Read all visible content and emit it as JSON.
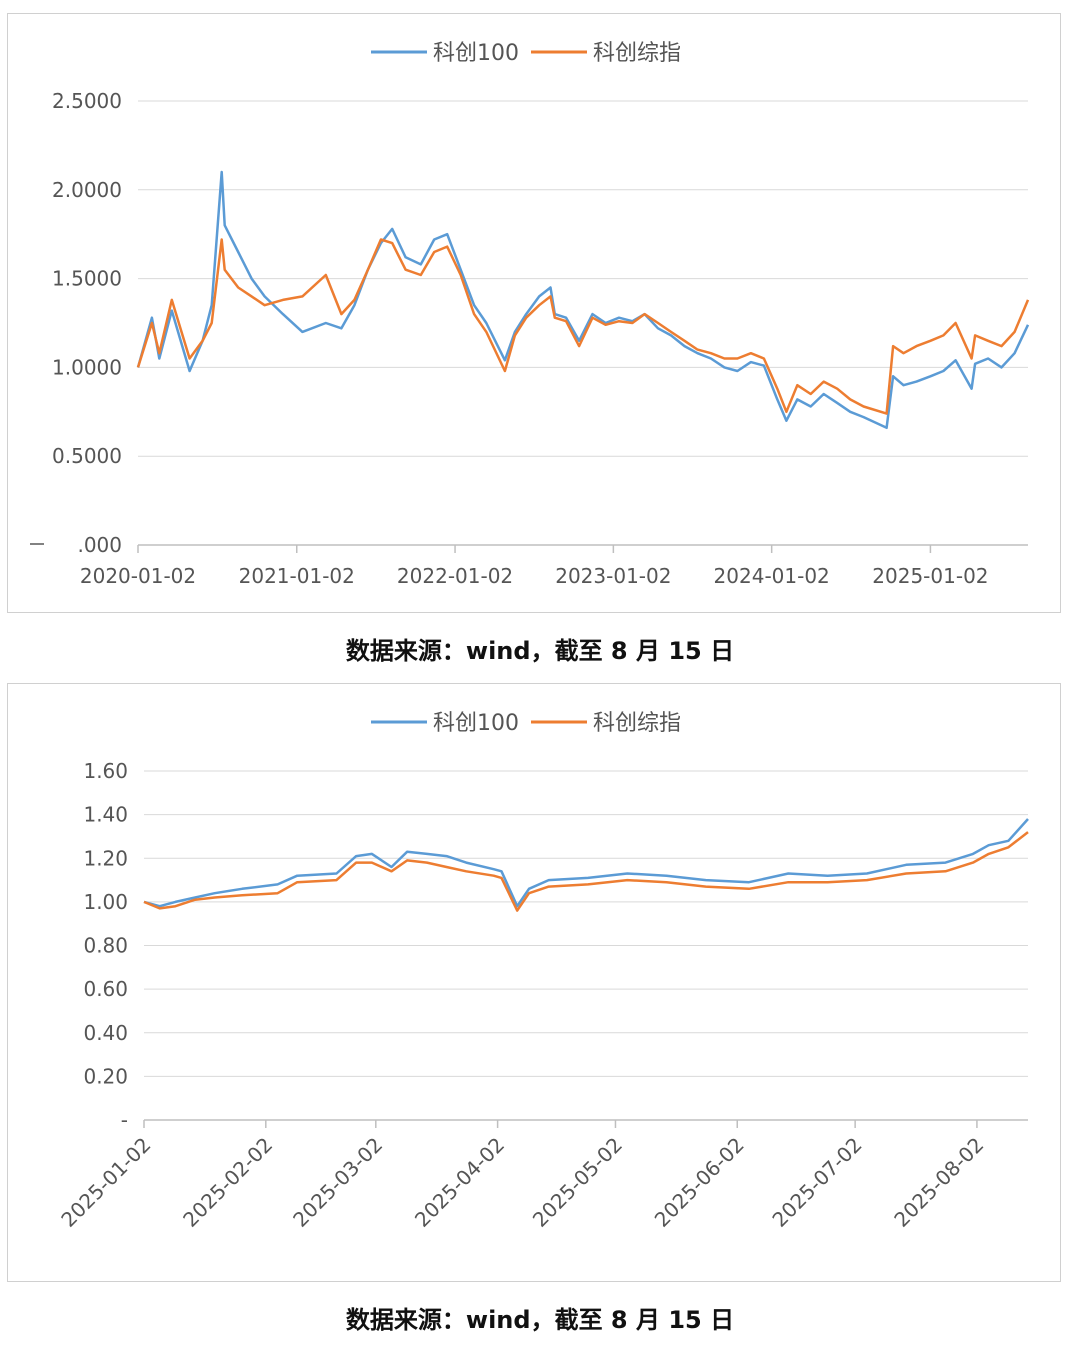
{
  "colors": {
    "series1": "#5B9BD5",
    "series2": "#ED7D31",
    "grid": "#d9d9d9",
    "axis": "#bfbfbf",
    "text": "#595959"
  },
  "captions": [
    "数据来源：wind，截至 8 月 15 日",
    "数据来源：wind，截至 8 月 15 日"
  ],
  "chart_data": [
    {
      "type": "line",
      "legend": [
        "科创100",
        "科创综指"
      ],
      "legend_position": "top",
      "grid": true,
      "ylim": [
        0,
        2.5
      ],
      "yticks": [
        0,
        0.5,
        1.0,
        1.5,
        2.0,
        2.5
      ],
      "ytick_labels": [
        ".000",
        "0.5000",
        "1.0000",
        "1.5000",
        "2.0000",
        "2.5000"
      ],
      "xlim": [
        "2020-01-02",
        "2025-08-15"
      ],
      "xticks": [
        "2020-01-02",
        "2021-01-02",
        "2022-01-02",
        "2023-01-02",
        "2024-01-02",
        "2025-01-02"
      ],
      "series": [
        {
          "name": "科创100",
          "x": [
            "2020-01-02",
            "2020-02-03",
            "2020-02-20",
            "2020-03-20",
            "2020-04-30",
            "2020-05-30",
            "2020-06-20",
            "2020-07-13",
            "2020-07-20",
            "2020-08-20",
            "2020-09-20",
            "2020-10-20",
            "2020-12-01",
            "2021-01-15",
            "2021-03-10",
            "2021-04-15",
            "2021-05-15",
            "2021-06-15",
            "2021-07-15",
            "2021-08-10",
            "2021-09-10",
            "2021-10-15",
            "2021-11-15",
            "2021-12-15",
            "2022-01-15",
            "2022-02-15",
            "2022-03-15",
            "2022-04-27",
            "2022-05-20",
            "2022-06-15",
            "2022-07-15",
            "2022-08-10",
            "2022-08-20",
            "2022-09-15",
            "2022-10-15",
            "2022-11-15",
            "2022-12-15",
            "2023-01-15",
            "2023-02-15",
            "2023-03-15",
            "2023-04-15",
            "2023-05-15",
            "2023-06-15",
            "2023-07-15",
            "2023-08-15",
            "2023-09-15",
            "2023-10-15",
            "2023-11-15",
            "2023-12-15",
            "2024-01-15",
            "2024-02-05",
            "2024-03-01",
            "2024-04-01",
            "2024-05-01",
            "2024-06-01",
            "2024-07-01",
            "2024-08-01",
            "2024-09-23",
            "2024-10-08",
            "2024-11-01",
            "2024-12-01",
            "2025-01-02",
            "2025-02-01",
            "2025-03-01",
            "2025-04-07",
            "2025-04-15",
            "2025-05-15",
            "2025-06-15",
            "2025-07-15",
            "2025-08-15"
          ],
          "y": [
            1.0,
            1.28,
            1.05,
            1.32,
            0.98,
            1.15,
            1.35,
            2.1,
            1.8,
            1.65,
            1.5,
            1.4,
            1.3,
            1.2,
            1.25,
            1.22,
            1.35,
            1.55,
            1.7,
            1.78,
            1.62,
            1.58,
            1.72,
            1.75,
            1.55,
            1.35,
            1.25,
            1.04,
            1.2,
            1.3,
            1.4,
            1.45,
            1.3,
            1.28,
            1.15,
            1.3,
            1.25,
            1.28,
            1.26,
            1.3,
            1.22,
            1.18,
            1.12,
            1.08,
            1.05,
            1.0,
            0.98,
            1.03,
            1.01,
            0.82,
            0.7,
            0.82,
            0.78,
            0.85,
            0.8,
            0.75,
            0.72,
            0.66,
            0.95,
            0.9,
            0.92,
            0.95,
            0.98,
            1.04,
            0.88,
            1.02,
            1.05,
            1.0,
            1.08,
            1.24
          ]
        },
        {
          "name": "科创综指",
          "x": [
            "2020-01-02",
            "2020-02-03",
            "2020-02-20",
            "2020-03-20",
            "2020-04-30",
            "2020-05-30",
            "2020-06-20",
            "2020-07-13",
            "2020-07-20",
            "2020-08-20",
            "2020-09-20",
            "2020-10-20",
            "2020-12-01",
            "2021-01-15",
            "2021-03-10",
            "2021-04-15",
            "2021-05-15",
            "2021-06-15",
            "2021-07-15",
            "2021-08-10",
            "2021-09-10",
            "2021-10-15",
            "2021-11-15",
            "2021-12-15",
            "2022-01-15",
            "2022-02-15",
            "2022-03-15",
            "2022-04-27",
            "2022-05-20",
            "2022-06-15",
            "2022-07-15",
            "2022-08-10",
            "2022-08-20",
            "2022-09-15",
            "2022-10-15",
            "2022-11-15",
            "2022-12-15",
            "2023-01-15",
            "2023-02-15",
            "2023-03-15",
            "2023-04-15",
            "2023-05-15",
            "2023-06-15",
            "2023-07-15",
            "2023-08-15",
            "2023-09-15",
            "2023-10-15",
            "2023-11-15",
            "2023-12-15",
            "2024-01-15",
            "2024-02-05",
            "2024-03-01",
            "2024-04-01",
            "2024-05-01",
            "2024-06-01",
            "2024-07-01",
            "2024-08-01",
            "2024-09-23",
            "2024-10-08",
            "2024-11-01",
            "2024-12-01",
            "2025-01-02",
            "2025-02-01",
            "2025-03-01",
            "2025-04-07",
            "2025-04-15",
            "2025-05-15",
            "2025-06-15",
            "2025-07-15",
            "2025-08-15"
          ],
          "y": [
            1.0,
            1.25,
            1.08,
            1.38,
            1.05,
            1.15,
            1.25,
            1.72,
            1.55,
            1.45,
            1.4,
            1.35,
            1.38,
            1.4,
            1.52,
            1.3,
            1.38,
            1.55,
            1.72,
            1.7,
            1.55,
            1.52,
            1.65,
            1.68,
            1.52,
            1.3,
            1.2,
            0.98,
            1.18,
            1.28,
            1.35,
            1.4,
            1.28,
            1.26,
            1.12,
            1.28,
            1.24,
            1.26,
            1.25,
            1.3,
            1.25,
            1.2,
            1.15,
            1.1,
            1.08,
            1.05,
            1.05,
            1.08,
            1.05,
            0.88,
            0.75,
            0.9,
            0.85,
            0.92,
            0.88,
            0.82,
            0.78,
            0.74,
            1.12,
            1.08,
            1.12,
            1.15,
            1.18,
            1.25,
            1.05,
            1.18,
            1.15,
            1.12,
            1.2,
            1.38
          ]
        }
      ]
    },
    {
      "type": "line",
      "legend": [
        "科创100",
        "科创综指"
      ],
      "legend_position": "top",
      "grid": true,
      "ylim": [
        0,
        1.6
      ],
      "yticks": [
        0,
        0.2,
        0.4,
        0.6,
        0.8,
        1.0,
        1.2,
        1.4,
        1.6
      ],
      "ytick_labels": [
        "-",
        "0.20",
        "0.40",
        "0.60",
        "0.80",
        "1.00",
        "1.20",
        "1.40",
        "1.60"
      ],
      "xlim": [
        "2025-01-02",
        "2025-08-15"
      ],
      "xticks": [
        "2025-01-02",
        "2025-02-02",
        "2025-03-02",
        "2025-04-02",
        "2025-05-02",
        "2025-06-02",
        "2025-07-02",
        "2025-08-02"
      ],
      "series": [
        {
          "name": "科创100",
          "x": [
            "2025-01-02",
            "2025-01-06",
            "2025-01-10",
            "2025-01-15",
            "2025-01-20",
            "2025-01-27",
            "2025-02-05",
            "2025-02-10",
            "2025-02-20",
            "2025-02-25",
            "2025-03-01",
            "2025-03-06",
            "2025-03-10",
            "2025-03-15",
            "2025-03-20",
            "2025-03-25",
            "2025-04-01",
            "2025-04-03",
            "2025-04-07",
            "2025-04-10",
            "2025-04-15",
            "2025-04-25",
            "2025-05-05",
            "2025-05-15",
            "2025-05-25",
            "2025-06-05",
            "2025-06-15",
            "2025-06-25",
            "2025-07-05",
            "2025-07-15",
            "2025-07-25",
            "2025-08-01",
            "2025-08-05",
            "2025-08-10",
            "2025-08-15"
          ],
          "y": [
            1.0,
            0.98,
            1.0,
            1.02,
            1.04,
            1.06,
            1.08,
            1.12,
            1.13,
            1.21,
            1.22,
            1.16,
            1.23,
            1.22,
            1.21,
            1.18,
            1.15,
            1.14,
            0.98,
            1.06,
            1.1,
            1.11,
            1.13,
            1.12,
            1.1,
            1.09,
            1.13,
            1.12,
            1.13,
            1.17,
            1.18,
            1.22,
            1.26,
            1.28,
            1.38
          ]
        },
        {
          "name": "科创综指",
          "x": [
            "2025-01-02",
            "2025-01-06",
            "2025-01-10",
            "2025-01-15",
            "2025-01-20",
            "2025-01-27",
            "2025-02-05",
            "2025-02-10",
            "2025-02-20",
            "2025-02-25",
            "2025-03-01",
            "2025-03-06",
            "2025-03-10",
            "2025-03-15",
            "2025-03-20",
            "2025-03-25",
            "2025-04-01",
            "2025-04-03",
            "2025-04-07",
            "2025-04-10",
            "2025-04-15",
            "2025-04-25",
            "2025-05-05",
            "2025-05-15",
            "2025-05-25",
            "2025-06-05",
            "2025-06-15",
            "2025-06-25",
            "2025-07-05",
            "2025-07-15",
            "2025-07-25",
            "2025-08-01",
            "2025-08-05",
            "2025-08-10",
            "2025-08-15"
          ],
          "y": [
            1.0,
            0.97,
            0.98,
            1.01,
            1.02,
            1.03,
            1.04,
            1.09,
            1.1,
            1.18,
            1.18,
            1.14,
            1.19,
            1.18,
            1.16,
            1.14,
            1.12,
            1.11,
            0.96,
            1.04,
            1.07,
            1.08,
            1.1,
            1.09,
            1.07,
            1.06,
            1.09,
            1.09,
            1.1,
            1.13,
            1.14,
            1.18,
            1.22,
            1.25,
            1.32
          ]
        }
      ]
    }
  ]
}
